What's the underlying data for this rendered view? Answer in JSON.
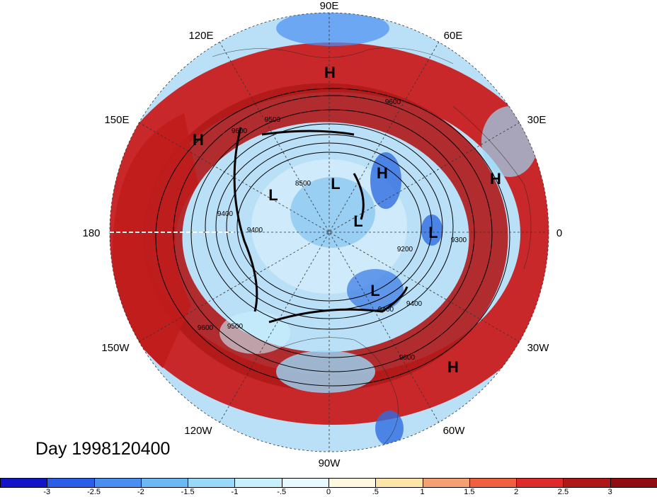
{
  "title": "Day 1998120400",
  "longitude_labels": [
    "90E",
    "60E",
    "30E",
    "0",
    "30W",
    "60W",
    "90W",
    "120W",
    "150W",
    "180",
    "150E",
    "120E"
  ],
  "highs_lows": [
    "H",
    "H",
    "H",
    "H",
    "H",
    "L",
    "L",
    "L",
    "L",
    "L"
  ],
  "contour_labels": [
    "9600",
    "9500",
    "9400",
    "9200",
    "8500",
    "9400",
    "9400",
    "9600",
    "9600",
    "9500",
    "9400",
    "9300",
    "9600"
  ],
  "colorbar": {
    "colors": [
      "#1515c8",
      "#2a5ee8",
      "#4a8ef0",
      "#6cb8f5",
      "#9ad8f8",
      "#c8f0fb",
      "#e8fafd",
      "#fff8e0",
      "#fde4a8",
      "#f4a070",
      "#f06040",
      "#e02a2a",
      "#b01818",
      "#900c10"
    ],
    "labels": [
      "-3",
      "-2.5",
      "-2",
      "-1.5",
      "-1",
      "-.5",
      "0",
      ".5",
      "1",
      "1.5",
      "2",
      "2.5",
      "3"
    ]
  },
  "colors": {
    "anomaly_positive": "#b01818",
    "anomaly_negative": "#2a5ee8",
    "contour": "#000000"
  }
}
